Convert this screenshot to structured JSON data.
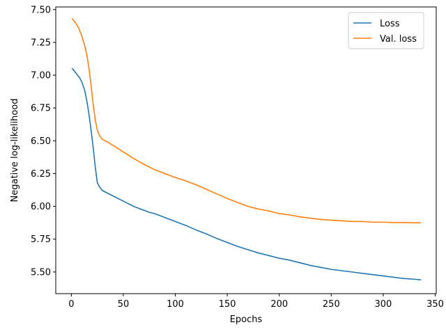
{
  "chart_data": {
    "type": "line",
    "title": "",
    "xlabel": "Epochs",
    "ylabel": "Negative log-likelihood",
    "xlim": [
      -15,
      351
    ],
    "ylim": [
      5.335,
      7.52
    ],
    "xticks": [
      0,
      50,
      100,
      150,
      200,
      250,
      300,
      350
    ],
    "yticks": [
      5.5,
      5.75,
      6.0,
      6.25,
      6.5,
      6.75,
      7.0,
      7.25,
      7.5
    ],
    "ytick_labels": [
      "5.50",
      "5.75",
      "6.00",
      "6.25",
      "6.50",
      "6.75",
      "7.00",
      "7.25",
      "7.50"
    ],
    "grid": false,
    "legend_position": "top-right",
    "series": [
      {
        "name": "Loss",
        "color": "#1f77b4",
        "points": [
          [
            1,
            7.05
          ],
          [
            3,
            7.03
          ],
          [
            5,
            7.01
          ],
          [
            8,
            6.98
          ],
          [
            10,
            6.95
          ],
          [
            13,
            6.88
          ],
          [
            15,
            6.8
          ],
          [
            17,
            6.7
          ],
          [
            19,
            6.58
          ],
          [
            21,
            6.45
          ],
          [
            23,
            6.3
          ],
          [
            25,
            6.18
          ],
          [
            27,
            6.15
          ],
          [
            30,
            6.12
          ],
          [
            35,
            6.1
          ],
          [
            40,
            6.08
          ],
          [
            45,
            6.06
          ],
          [
            50,
            6.04
          ],
          [
            55,
            6.02
          ],
          [
            60,
            6.0
          ],
          [
            65,
            5.985
          ],
          [
            70,
            5.97
          ],
          [
            75,
            5.955
          ],
          [
            80,
            5.945
          ],
          [
            85,
            5.93
          ],
          [
            90,
            5.915
          ],
          [
            95,
            5.9
          ],
          [
            100,
            5.885
          ],
          [
            110,
            5.855
          ],
          [
            120,
            5.82
          ],
          [
            130,
            5.79
          ],
          [
            140,
            5.755
          ],
          [
            150,
            5.725
          ],
          [
            160,
            5.695
          ],
          [
            170,
            5.67
          ],
          [
            180,
            5.645
          ],
          [
            190,
            5.625
          ],
          [
            200,
            5.605
          ],
          [
            210,
            5.59
          ],
          [
            220,
            5.57
          ],
          [
            230,
            5.55
          ],
          [
            240,
            5.535
          ],
          [
            250,
            5.52
          ],
          [
            260,
            5.51
          ],
          [
            270,
            5.5
          ],
          [
            280,
            5.49
          ],
          [
            290,
            5.48
          ],
          [
            300,
            5.47
          ],
          [
            310,
            5.46
          ],
          [
            320,
            5.45
          ],
          [
            330,
            5.445
          ],
          [
            336,
            5.44
          ]
        ]
      },
      {
        "name": "Val. loss",
        "color": "#ff7f0e",
        "points": [
          [
            1,
            7.43
          ],
          [
            4,
            7.4
          ],
          [
            7,
            7.36
          ],
          [
            10,
            7.3
          ],
          [
            13,
            7.22
          ],
          [
            15,
            7.15
          ],
          [
            17,
            7.05
          ],
          [
            19,
            6.92
          ],
          [
            21,
            6.78
          ],
          [
            23,
            6.66
          ],
          [
            25,
            6.58
          ],
          [
            27,
            6.54
          ],
          [
            30,
            6.51
          ],
          [
            35,
            6.49
          ],
          [
            40,
            6.465
          ],
          [
            45,
            6.44
          ],
          [
            50,
            6.415
          ],
          [
            55,
            6.39
          ],
          [
            60,
            6.365
          ],
          [
            70,
            6.32
          ],
          [
            80,
            6.28
          ],
          [
            90,
            6.25
          ],
          [
            100,
            6.22
          ],
          [
            110,
            6.195
          ],
          [
            120,
            6.165
          ],
          [
            130,
            6.13
          ],
          [
            140,
            6.095
          ],
          [
            150,
            6.06
          ],
          [
            160,
            6.03
          ],
          [
            170,
            6.0
          ],
          [
            180,
            5.98
          ],
          [
            190,
            5.965
          ],
          [
            200,
            5.945
          ],
          [
            210,
            5.935
          ],
          [
            220,
            5.92
          ],
          [
            230,
            5.91
          ],
          [
            240,
            5.9
          ],
          [
            250,
            5.895
          ],
          [
            260,
            5.89
          ],
          [
            270,
            5.885
          ],
          [
            280,
            5.885
          ],
          [
            290,
            5.88
          ],
          [
            300,
            5.88
          ],
          [
            310,
            5.877
          ],
          [
            320,
            5.877
          ],
          [
            330,
            5.875
          ],
          [
            336,
            5.875
          ]
        ]
      }
    ]
  }
}
